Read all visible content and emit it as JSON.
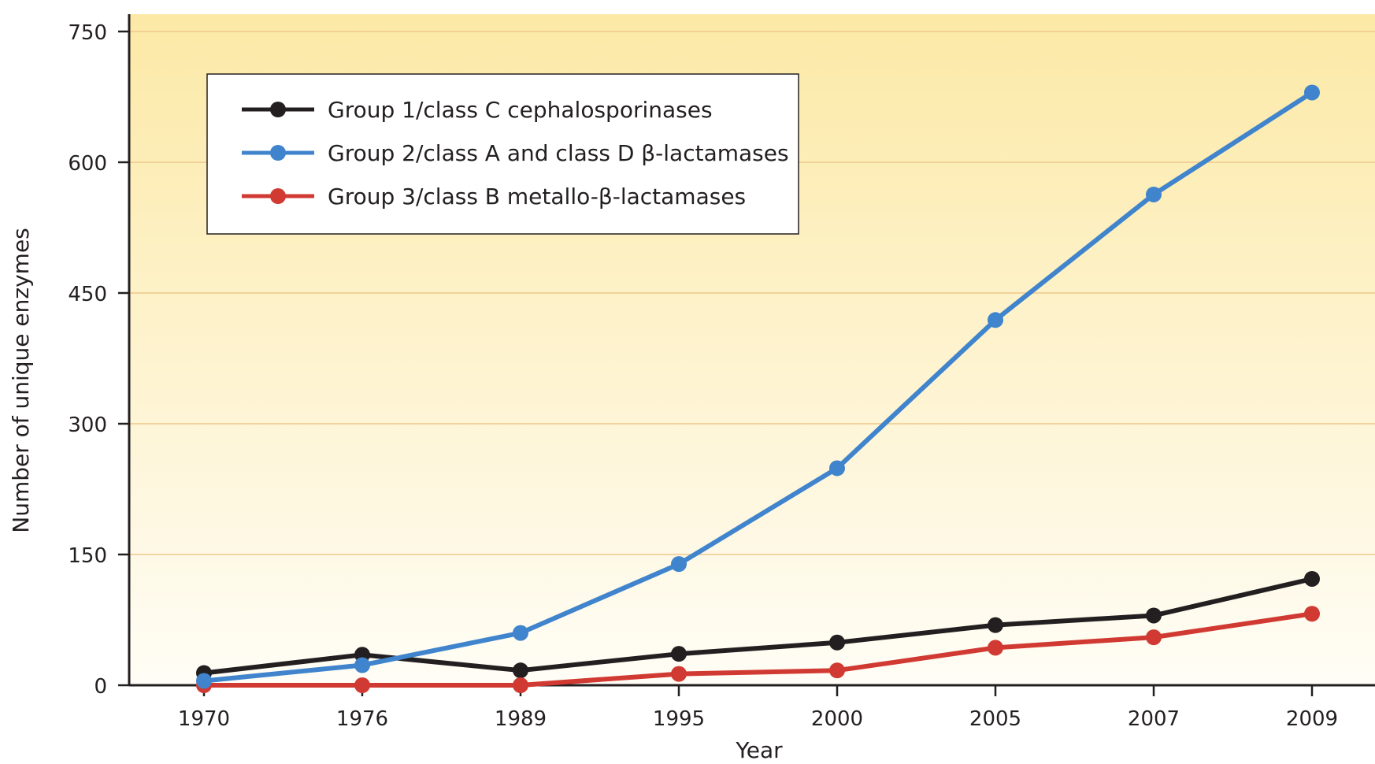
{
  "chart_data": {
    "type": "line",
    "title": "",
    "xlabel": "Year",
    "ylabel": "Number of unique enzymes",
    "categories": [
      "1970",
      "1976",
      "1989",
      "1995",
      "2000",
      "2005",
      "2007",
      "2009"
    ],
    "yticks": [
      0,
      150,
      300,
      450,
      600,
      750
    ],
    "ylim": [
      0,
      750
    ],
    "grid": "horizontal",
    "legend_position": "top-left",
    "series": [
      {
        "name": "Group 1/class C cephalosporinases",
        "color": "#231f20",
        "values": [
          14,
          35,
          17,
          36,
          49,
          69,
          80,
          122
        ]
      },
      {
        "name": "Group 2/class A and class D β-lactamases",
        "color": "#3f84cc",
        "values": [
          5,
          23,
          60,
          139,
          249,
          419,
          563,
          680
        ]
      },
      {
        "name": "Group 3/class B metallo-β-lactamases",
        "color": "#d13a32",
        "values": [
          0,
          0,
          0,
          13,
          17,
          43,
          55,
          82
        ]
      }
    ]
  }
}
